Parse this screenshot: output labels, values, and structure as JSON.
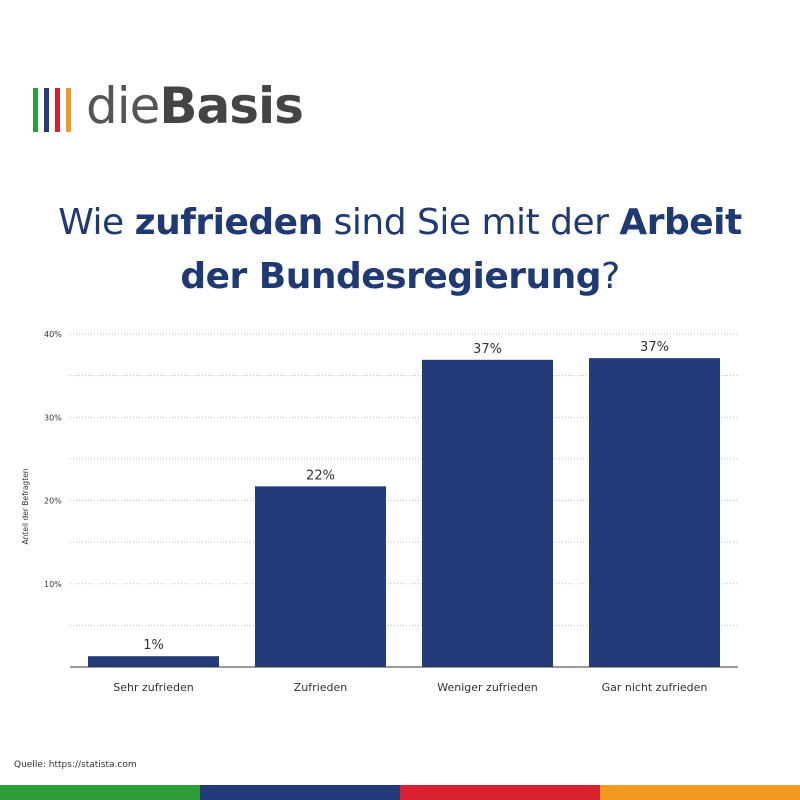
{
  "logo": {
    "text_light": "die",
    "text_bold": "Basis",
    "stripe_colors": [
      "#2e9e3a",
      "#243b7a",
      "#d9202e",
      "#f39a1e"
    ]
  },
  "title": {
    "p1": "Wie ",
    "b1": "zufrieden",
    "p2": " sind Sie mit der ",
    "b2": "Arbeit",
    "b3": "der Bundesregierung",
    "p3": "?"
  },
  "chart_data": {
    "type": "bar",
    "categories": [
      "Sehr zufrieden",
      "Zufrieden",
      "Weniger zufrieden",
      "Gar nicht zufrieden"
    ],
    "values": [
      1.3,
      21.7,
      36.9,
      37.1
    ],
    "data_labels": [
      "1%",
      "22%",
      "37%",
      "37%"
    ],
    "ylabel": "Anteil der Befragten",
    "ylim": [
      0,
      40
    ],
    "yticks": [
      10,
      20,
      30,
      40
    ],
    "ytick_labels": [
      "10%",
      "20%",
      "30%",
      "40%"
    ],
    "grid": true,
    "bar_color": "#243b7a"
  },
  "source": "Quelle: https://statista.com",
  "bottom_bar_colors": [
    "#2e9e3a",
    "#243b7a",
    "#d9202e",
    "#f39a1e"
  ]
}
